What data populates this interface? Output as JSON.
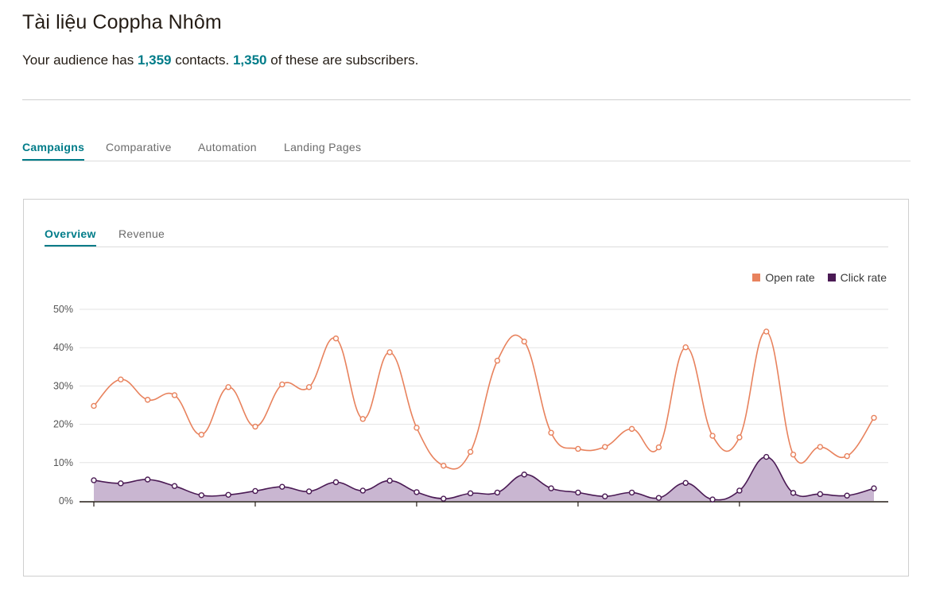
{
  "header": {
    "title": "Tài liệu Coppha Nhôm",
    "summary_prefix": "Your audience has ",
    "contacts_count": "1,359",
    "summary_mid": " contacts. ",
    "subscribers_count": "1,350",
    "summary_suffix": " of these are subscribers."
  },
  "tabs": [
    "Campaigns",
    "Comparative",
    "Automation",
    "Landing Pages"
  ],
  "subtabs": [
    "Overview",
    "Revenue"
  ],
  "colors": {
    "accent": "#007c89",
    "open_rate": "#e8825d",
    "click_rate": "#4a1a54",
    "click_fill": "#c9b6d1"
  },
  "chart_data": {
    "type": "area",
    "title": "",
    "xlabel": "",
    "ylabel": "",
    "ylim": [
      0,
      50
    ],
    "yticks": [
      "0%",
      "10%",
      "20%",
      "30%",
      "40%",
      "50%"
    ],
    "legend": [
      "Open rate",
      "Click rate"
    ],
    "legend_position": "top-right",
    "grid": true,
    "series": [
      {
        "name": "Open rate",
        "values": [
          24.8,
          31.7,
          26.4,
          27.6,
          17.3,
          29.7,
          19.4,
          30.4,
          29.7,
          42.4,
          21.4,
          38.8,
          19.1,
          9.2,
          12.8,
          36.6,
          41.6,
          17.8,
          13.6,
          14.1,
          18.8,
          14.0,
          40.1,
          17.0,
          16.6,
          44.2,
          12.1,
          14.1,
          11.7,
          21.7
        ]
      },
      {
        "name": "Click rate",
        "values": [
          5.4,
          4.6,
          5.6,
          3.9,
          1.5,
          1.6,
          2.6,
          3.7,
          2.5,
          4.9,
          2.7,
          5.3,
          2.3,
          0.6,
          2.0,
          2.2,
          6.9,
          3.3,
          2.2,
          1.2,
          2.2,
          0.8,
          4.7,
          0.4,
          2.7,
          11.5,
          2.1,
          1.8,
          1.4,
          3.3
        ]
      }
    ]
  }
}
